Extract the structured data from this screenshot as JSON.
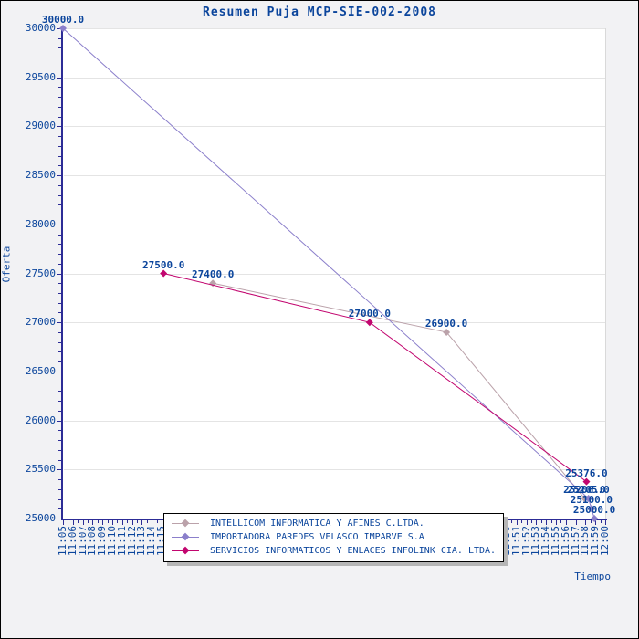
{
  "title": "Resumen Puja MCP-SIE-002-2008",
  "colors": {
    "text_blue": "#0b459c",
    "axis_line": "#2c2c96",
    "gridline": "#e4e4e4",
    "plot_background": "#ffffff",
    "outer_background": "#f2f2f4",
    "series_intellicom": "#bba2aa",
    "series_imparve": "#8b7fcb",
    "series_infolink": "#c2066f"
  },
  "axes": {
    "y_label": "Oferta",
    "x_label": "Tiempo",
    "y_tick_labels": [
      "25000",
      "25500",
      "26000",
      "26500",
      "27000",
      "27500",
      "28000",
      "28500",
      "29000",
      "29500",
      "30000"
    ],
    "x_tick_labels": [
      "11:05",
      "11:06",
      "11:07",
      "11:08",
      "11:09",
      "11:10",
      "11:11",
      "11:12",
      "11:13",
      "11:14",
      "11:15",
      "11:16",
      "11:17",
      "11:18",
      "11:19",
      "11:20",
      "11:21",
      "11:22",
      "11:23",
      "11:24",
      "11:25",
      "11:26",
      "11:27",
      "11:28",
      "11:29",
      "11:30",
      "11:31",
      "11:32",
      "11:33",
      "11:34",
      "11:35",
      "11:36",
      "11:37",
      "11:38",
      "11:39",
      "11:40",
      "11:41",
      "11:42",
      "11:43",
      "11:44",
      "11:45",
      "11:46",
      "11:47",
      "11:48",
      "11:49",
      "11:50",
      "11:51",
      "11:52",
      "11:53",
      "11:54",
      "11:55",
      "11:56",
      "11:57",
      "11:58",
      "11:59",
      "12:00"
    ]
  },
  "legend": {
    "items": [
      {
        "label": "INTELLICOM INFORMATICA Y AFINES C.LTDA.",
        "color": "#bba2aa"
      },
      {
        "label": "IMPORTADORA PAREDES VELASCO IMPARVE S.A",
        "color": "#8b7fcb"
      },
      {
        "label": "SERVICIOS INFORMATICOS Y ENLACES INFOLINK CIA. LTDA.",
        "color": "#c2066f"
      }
    ]
  },
  "chart_data": {
    "type": "line",
    "title": "Resumen Puja MCP-SIE-002-2008",
    "xlabel": "Tiempo",
    "ylabel": "Oferta",
    "ylim": [
      25000,
      30000
    ],
    "y_major_step": 500,
    "y_minor_step": 100,
    "x_start": "11:05",
    "x_end": "12:00",
    "x_span_minutes": 55,
    "grid": "horizontal-only",
    "legend_position": "bottom-center",
    "marker": "diamond",
    "series": [
      {
        "name": "INTELLICOM INFORMATICA Y AFINES C.LTDA.",
        "color": "#bba2aa",
        "points": [
          {
            "time": "11:20",
            "minute": 15.2,
            "value": 27400.0,
            "label": "27400.0"
          },
          {
            "time": "11:44",
            "minute": 38.9,
            "value": 26900.0,
            "label": "26900.0"
          },
          {
            "time": "11:58",
            "minute": 52.9,
            "value": 25206.0,
            "label": "25206.0"
          }
        ]
      },
      {
        "name": "IMPORTADORA PAREDES VELASCO IMPARVE S.A",
        "color": "#8b7fcb",
        "points": [
          {
            "time": "11:05",
            "minute": 0.0,
            "value": 30000.0,
            "label": "30000.0"
          },
          {
            "time": "11:58",
            "minute": 53.3,
            "value": 25205.0,
            "label": "25205.0"
          },
          {
            "time": "11:59",
            "minute": 53.6,
            "value": 25100.0,
            "label": "25100.0"
          },
          {
            "time": "11:59",
            "minute": 53.9,
            "value": 25000.0,
            "label": "25000.0"
          }
        ]
      },
      {
        "name": "SERVICIOS INFORMATICOS Y ENLACES INFOLINK CIA. LTDA.",
        "color": "#c2066f",
        "points": [
          {
            "time": "11:15",
            "minute": 10.2,
            "value": 27500.0,
            "label": "27500.0"
          },
          {
            "time": "11:36",
            "minute": 31.1,
            "value": 27000.0,
            "label": "27000.0"
          },
          {
            "time": "11:58",
            "minute": 53.1,
            "value": 25376.0,
            "label": "25376.0"
          }
        ]
      }
    ]
  }
}
